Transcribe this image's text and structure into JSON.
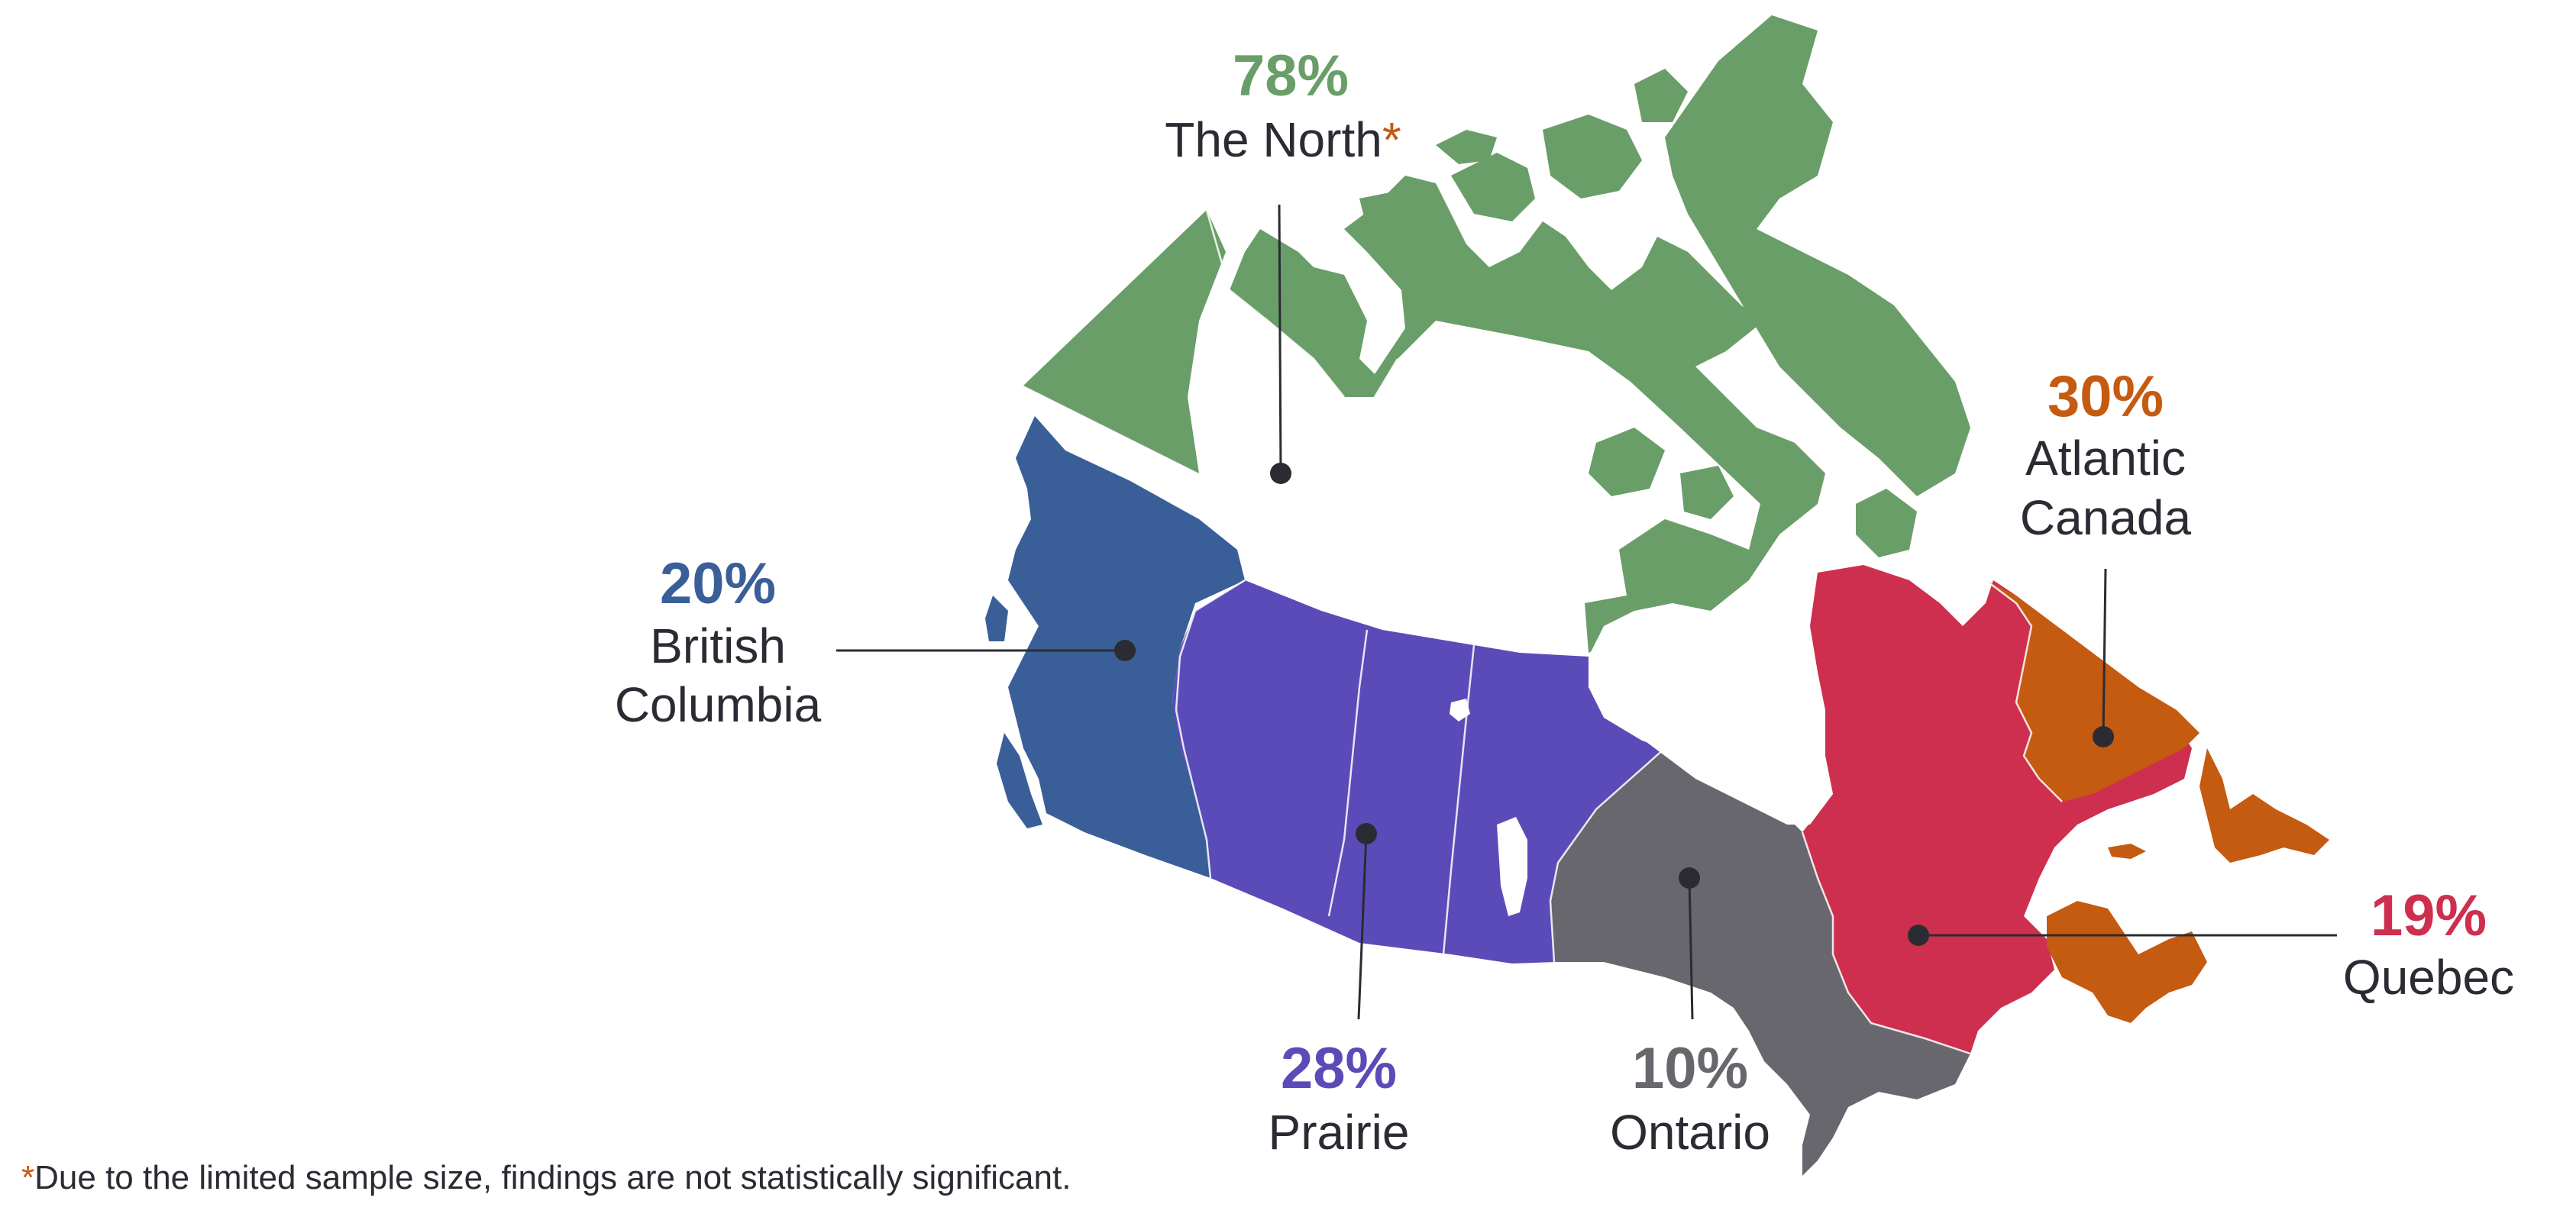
{
  "colors": {
    "north": "#6a9e68",
    "british_columbia": "#3a5f98",
    "prairie": "#5b4bb8",
    "ontario": "#67676d",
    "quebec": "#ce2f4e",
    "atlantic": "#c55a11",
    "text": "#2b2b33",
    "asterisk": "#c55a11"
  },
  "regions": {
    "north": {
      "percent": "78%",
      "name": "The North",
      "asterisk": "*",
      "value": 78
    },
    "british_columbia": {
      "percent": "20%",
      "name_line1": "British",
      "name_line2": "Columbia",
      "value": 20
    },
    "prairie": {
      "percent": "28%",
      "name": "Prairie",
      "value": 28
    },
    "ontario": {
      "percent": "10%",
      "name": "Ontario",
      "value": 10
    },
    "quebec": {
      "percent": "19%",
      "name": "Quebec",
      "value": 19
    },
    "atlantic": {
      "percent": "30%",
      "name_line1": "Atlantic",
      "name_line2": "Canada",
      "value": 30
    }
  },
  "footnote": {
    "asterisk": "*",
    "text": "Due to the limited sample size, findings are not statistically significant."
  }
}
